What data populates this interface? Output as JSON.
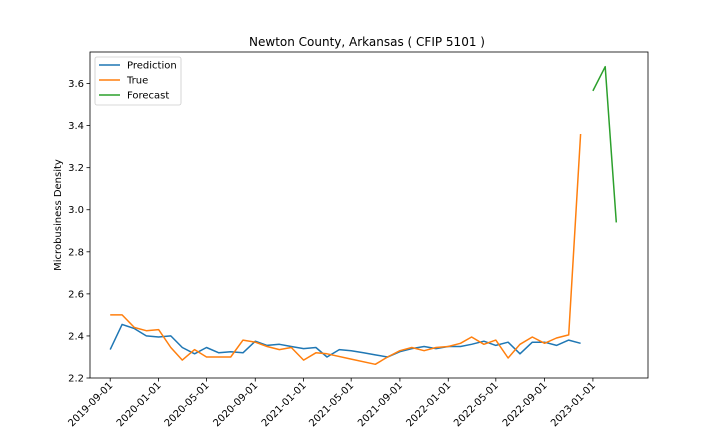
{
  "chart_data": {
    "type": "line",
    "title": "Newton County, Arkansas ( CFIP 5101 )",
    "xlabel": "",
    "ylabel": "Microbusiness Density",
    "xlim": [
      "2019-07-12",
      "2023-05-20"
    ],
    "ylim": [
      2.2,
      3.75
    ],
    "yticks": [
      2.2,
      2.4,
      2.6,
      2.8,
      3.0,
      3.2,
      3.4,
      3.6
    ],
    "ytick_labels": [
      "2.2",
      "2.4",
      "2.6",
      "2.8",
      "3.0",
      "3.2",
      "3.4",
      "3.6"
    ],
    "xticks": [
      "2019-09-01",
      "2020-01-01",
      "2020-05-01",
      "2020-09-01",
      "2021-01-01",
      "2021-05-01",
      "2021-09-01",
      "2022-01-01",
      "2022-05-01",
      "2022-09-01",
      "2023-01-01"
    ],
    "grid": false,
    "legend_position": "top-left",
    "series": [
      {
        "name": "Prediction",
        "color": "#1f77b4",
        "x": [
          "2019-09-01",
          "2019-10-01",
          "2019-11-01",
          "2019-12-01",
          "2020-01-01",
          "2020-02-01",
          "2020-03-01",
          "2020-04-01",
          "2020-05-01",
          "2020-06-01",
          "2020-07-01",
          "2020-08-01",
          "2020-09-01",
          "2020-10-01",
          "2020-11-01",
          "2020-12-01",
          "2021-01-01",
          "2021-02-01",
          "2021-03-01",
          "2021-04-01",
          "2021-05-01",
          "2021-06-01",
          "2021-07-01",
          "2021-08-01",
          "2021-09-01",
          "2021-10-01",
          "2021-11-01",
          "2021-12-01",
          "2022-01-01",
          "2022-02-01",
          "2022-03-01",
          "2022-04-01",
          "2022-05-01",
          "2022-06-01",
          "2022-07-01",
          "2022-08-01",
          "2022-09-01",
          "2022-10-01",
          "2022-11-01",
          "2022-12-01"
        ],
        "values": [
          2.335,
          2.455,
          2.435,
          2.4,
          2.395,
          2.4,
          2.345,
          2.315,
          2.345,
          2.32,
          2.325,
          2.32,
          2.375,
          2.355,
          2.36,
          2.35,
          2.34,
          2.345,
          2.3,
          2.335,
          2.33,
          2.32,
          2.31,
          2.3,
          2.325,
          2.34,
          2.35,
          2.34,
          2.35,
          2.35,
          2.36,
          2.375,
          2.355,
          2.37,
          2.315,
          2.37,
          2.37,
          2.355,
          2.38,
          2.365
        ]
      },
      {
        "name": "True",
        "color": "#ff7f0e",
        "x": [
          "2019-09-01",
          "2019-10-01",
          "2019-11-01",
          "2019-12-01",
          "2020-01-01",
          "2020-02-01",
          "2020-03-01",
          "2020-04-01",
          "2020-05-01",
          "2020-06-01",
          "2020-07-01",
          "2020-08-01",
          "2020-09-01",
          "2020-10-01",
          "2020-11-01",
          "2020-12-01",
          "2021-01-01",
          "2021-02-01",
          "2021-03-01",
          "2021-05-01",
          "2021-07-01",
          "2021-08-01",
          "2021-09-01",
          "2021-10-01",
          "2021-11-01",
          "2021-12-01",
          "2022-01-01",
          "2022-02-01",
          "2022-03-01",
          "2022-04-01",
          "2022-05-01",
          "2022-06-01",
          "2022-07-01",
          "2022-08-01",
          "2022-09-01",
          "2022-10-01",
          "2022-11-01",
          "2022-12-01"
        ],
        "values": [
          2.5,
          2.5,
          2.44,
          2.425,
          2.43,
          2.345,
          2.285,
          2.335,
          2.3,
          2.3,
          2.3,
          2.38,
          2.37,
          2.35,
          2.335,
          2.345,
          2.285,
          2.32,
          2.315,
          2.29,
          2.265,
          2.3,
          2.33,
          2.345,
          2.33,
          2.345,
          2.35,
          2.365,
          2.395,
          2.36,
          2.38,
          2.295,
          2.36,
          2.395,
          2.365,
          2.39,
          2.405,
          3.36
        ]
      },
      {
        "name": "Forecast",
        "color": "#2ca02c",
        "x": [
          "2023-01-01",
          "2023-02-01",
          "2023-03-01"
        ],
        "values": [
          3.565,
          3.68,
          2.94
        ]
      }
    ]
  }
}
